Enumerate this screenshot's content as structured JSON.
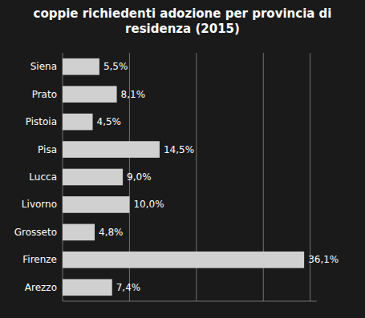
{
  "chart_data": {
    "type": "bar",
    "orientation": "horizontal",
    "title": "coppie richiedenti adozione per provincia di\nresidenza (2015)",
    "categories": [
      "Siena",
      "Prato",
      "Pistoia",
      "Pisa",
      "Lucca",
      "Livorno",
      "Grosseto",
      "Firenze",
      "Arezzo"
    ],
    "values": [
      5.5,
      8.1,
      4.5,
      14.5,
      9.0,
      10.0,
      4.8,
      36.1,
      7.4
    ],
    "value_labels": [
      "5,5%",
      "8,1%",
      "4,5%",
      "14,5%",
      "9,0%",
      "10,0%",
      "4,8%",
      "36,1%",
      "7,4%"
    ],
    "color": "#d0d0d0",
    "xlim": [
      0,
      38
    ],
    "xticks": [
      10,
      20,
      30,
      37
    ],
    "grid": true,
    "data_labels": true,
    "tick_labels": "y"
  }
}
